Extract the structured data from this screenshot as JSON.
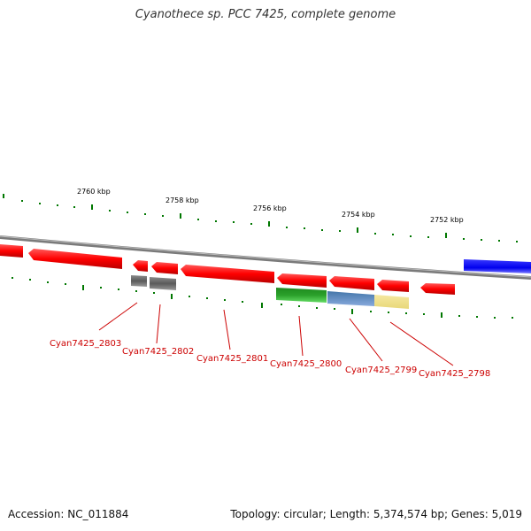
{
  "title": "Cyanothece sp. PCC 7425, complete genome",
  "footer": {
    "accession": "Accession: NC_011884",
    "summary": "Topology: circular; Length: 5,374,574 bp; Genes: 5,019"
  },
  "scale_labels": [
    "2760 kbp",
    "2758 kbp",
    "2756 kbp",
    "2754 kbp",
    "2752 kbp"
  ],
  "gene_labels": [
    "Cyan7425_2803",
    "Cyan7425_2802",
    "Cyan7425_2801",
    "Cyan7425_2800",
    "Cyan7425_2799",
    "Cyan7425_2798"
  ],
  "colors": {
    "cds": "#ff0000",
    "cds_other_strand": "#0000ee",
    "rna_dark": "#666666",
    "cog_green": "#2aa02a",
    "cog_blue": "#5588bb",
    "cog_yellow": "#f0e090",
    "tick": "#007700",
    "backbone": "#888888",
    "label": "#cc0000"
  }
}
